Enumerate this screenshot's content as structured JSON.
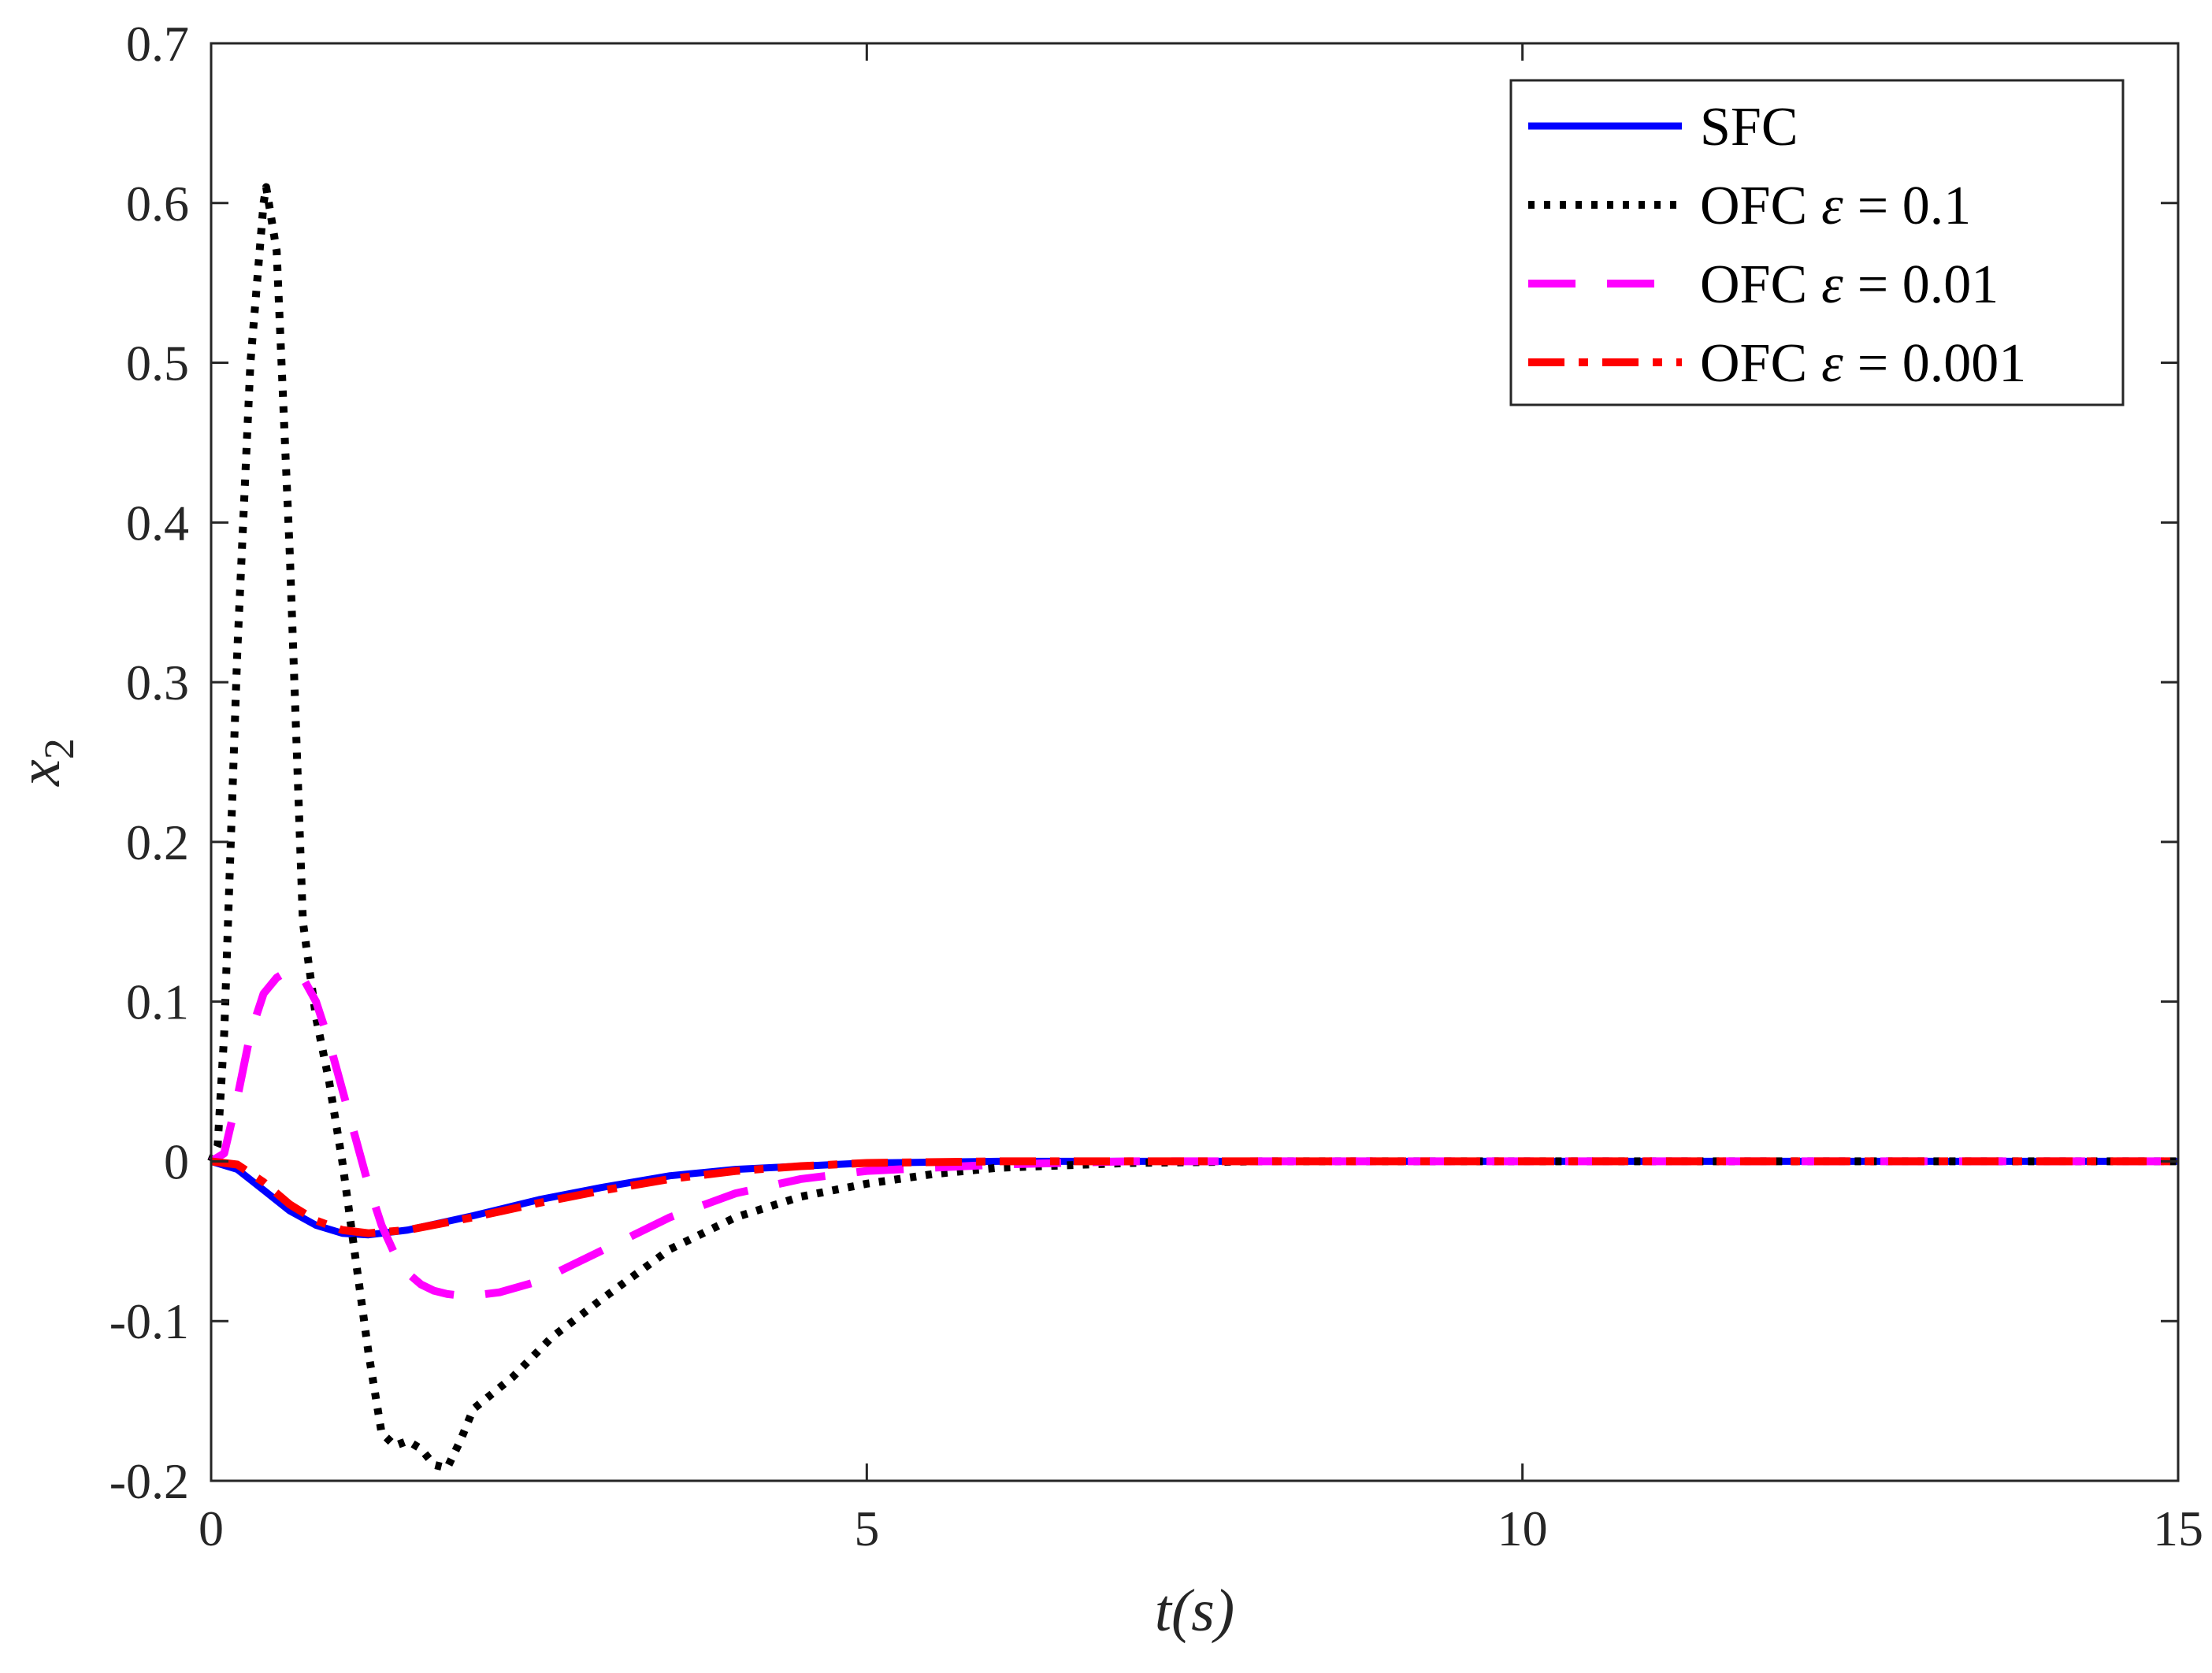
{
  "chart_data": {
    "type": "line",
    "title": "",
    "xlabel": "t(s)",
    "ylabel": "x2",
    "xlim": [
      0,
      15
    ],
    "ylim": [
      -0.2,
      0.7
    ],
    "xticks": [
      0,
      5,
      10,
      15
    ],
    "xtick_labels": [
      "0",
      "5",
      "10",
      "15"
    ],
    "yticks": [
      -0.2,
      -0.1,
      0,
      0.1,
      0.2,
      0.3,
      0.4,
      0.5,
      0.6,
      0.7
    ],
    "ytick_labels": [
      "-0.2",
      "-0.1",
      "0",
      "0.1",
      "0.2",
      "0.3",
      "0.4",
      "0.5",
      "0.6",
      "0.7"
    ],
    "grid": false,
    "legend_position": "top-right",
    "series": [
      {
        "name": "SFC",
        "color": "#0000ff",
        "dash": "solid",
        "x": [
          0,
          0.2,
          0.4,
          0.6,
          0.8,
          1.0,
          1.2,
          1.5,
          2.0,
          2.5,
          3.0,
          3.5,
          4.0,
          4.5,
          5.0,
          6.0,
          7.0,
          8.0,
          10.0,
          12.0,
          15.0
        ],
        "y": [
          0,
          -0.005,
          -0.018,
          -0.031,
          -0.04,
          -0.045,
          -0.046,
          -0.043,
          -0.034,
          -0.024,
          -0.016,
          -0.009,
          -0.005,
          -0.003,
          -0.001,
          0,
          0,
          0,
          0,
          0,
          0
        ]
      },
      {
        "name": "OFC ε = 0.1",
        "color": "#000000",
        "dash": "dotted",
        "x": [
          0,
          0.05,
          0.1,
          0.2,
          0.3,
          0.4,
          0.42,
          0.5,
          0.6,
          0.7,
          0.8,
          0.9,
          1.0,
          1.1,
          1.2,
          1.3,
          1.4,
          1.5,
          1.6,
          1.7,
          1.8,
          1.9,
          2.0,
          2.3,
          2.6,
          3.0,
          3.5,
          4.0,
          4.5,
          5.0,
          5.5,
          6.0,
          7.0,
          8.0,
          10.0,
          15.0
        ],
        "y": [
          0,
          0.01,
          0.08,
          0.32,
          0.5,
          0.6,
          0.61,
          0.57,
          0.38,
          0.15,
          0.09,
          0.05,
          0.0,
          -0.06,
          -0.12,
          -0.17,
          -0.178,
          -0.175,
          -0.18,
          -0.19,
          -0.192,
          -0.175,
          -0.155,
          -0.135,
          -0.11,
          -0.085,
          -0.055,
          -0.035,
          -0.022,
          -0.014,
          -0.008,
          -0.004,
          -0.001,
          0,
          0,
          0
        ]
      },
      {
        "name": "OFC ε = 0.01",
        "color": "#ff00ff",
        "dash": "dashed",
        "x": [
          0,
          0.1,
          0.2,
          0.3,
          0.4,
          0.5,
          0.6,
          0.7,
          0.8,
          0.9,
          1.0,
          1.1,
          1.2,
          1.3,
          1.4,
          1.5,
          1.6,
          1.7,
          1.8,
          1.9,
          2.0,
          2.2,
          2.5,
          3.0,
          3.5,
          4.0,
          4.5,
          5.0,
          6.0,
          7.0,
          8.0,
          10.0,
          15.0
        ],
        "y": [
          0,
          0.005,
          0.04,
          0.08,
          0.105,
          0.115,
          0.12,
          0.115,
          0.1,
          0.075,
          0.045,
          0.015,
          -0.015,
          -0.04,
          -0.058,
          -0.07,
          -0.077,
          -0.081,
          -0.083,
          -0.084,
          -0.084,
          -0.082,
          -0.075,
          -0.055,
          -0.035,
          -0.02,
          -0.011,
          -0.006,
          -0.002,
          0,
          0,
          0,
          0
        ]
      },
      {
        "name": "OFC ε = 0.001",
        "color": "#ff0000",
        "dash": "dashdot",
        "x": [
          0,
          0.2,
          0.4,
          0.6,
          0.8,
          1.0,
          1.2,
          1.5,
          2.0,
          2.5,
          3.0,
          3.5,
          4.0,
          4.5,
          5.0,
          6.0,
          7.0,
          8.0,
          10.0,
          12.0,
          15.0
        ],
        "y": [
          0,
          -0.002,
          -0.013,
          -0.027,
          -0.037,
          -0.043,
          -0.045,
          -0.043,
          -0.035,
          -0.026,
          -0.018,
          -0.011,
          -0.006,
          -0.003,
          -0.001,
          0,
          0,
          0,
          0,
          0,
          0
        ]
      }
    ],
    "legend": {
      "entries": [
        {
          "prefix": "SFC",
          "symbol": "",
          "suffix": ""
        },
        {
          "prefix": "OFC",
          "symbol": "ε",
          "suffix": "= 0.1"
        },
        {
          "prefix": "OFC",
          "symbol": "ε",
          "suffix": "= 0.01"
        },
        {
          "prefix": "OFC",
          "symbol": "ε",
          "suffix": "= 0.001"
        }
      ]
    }
  }
}
